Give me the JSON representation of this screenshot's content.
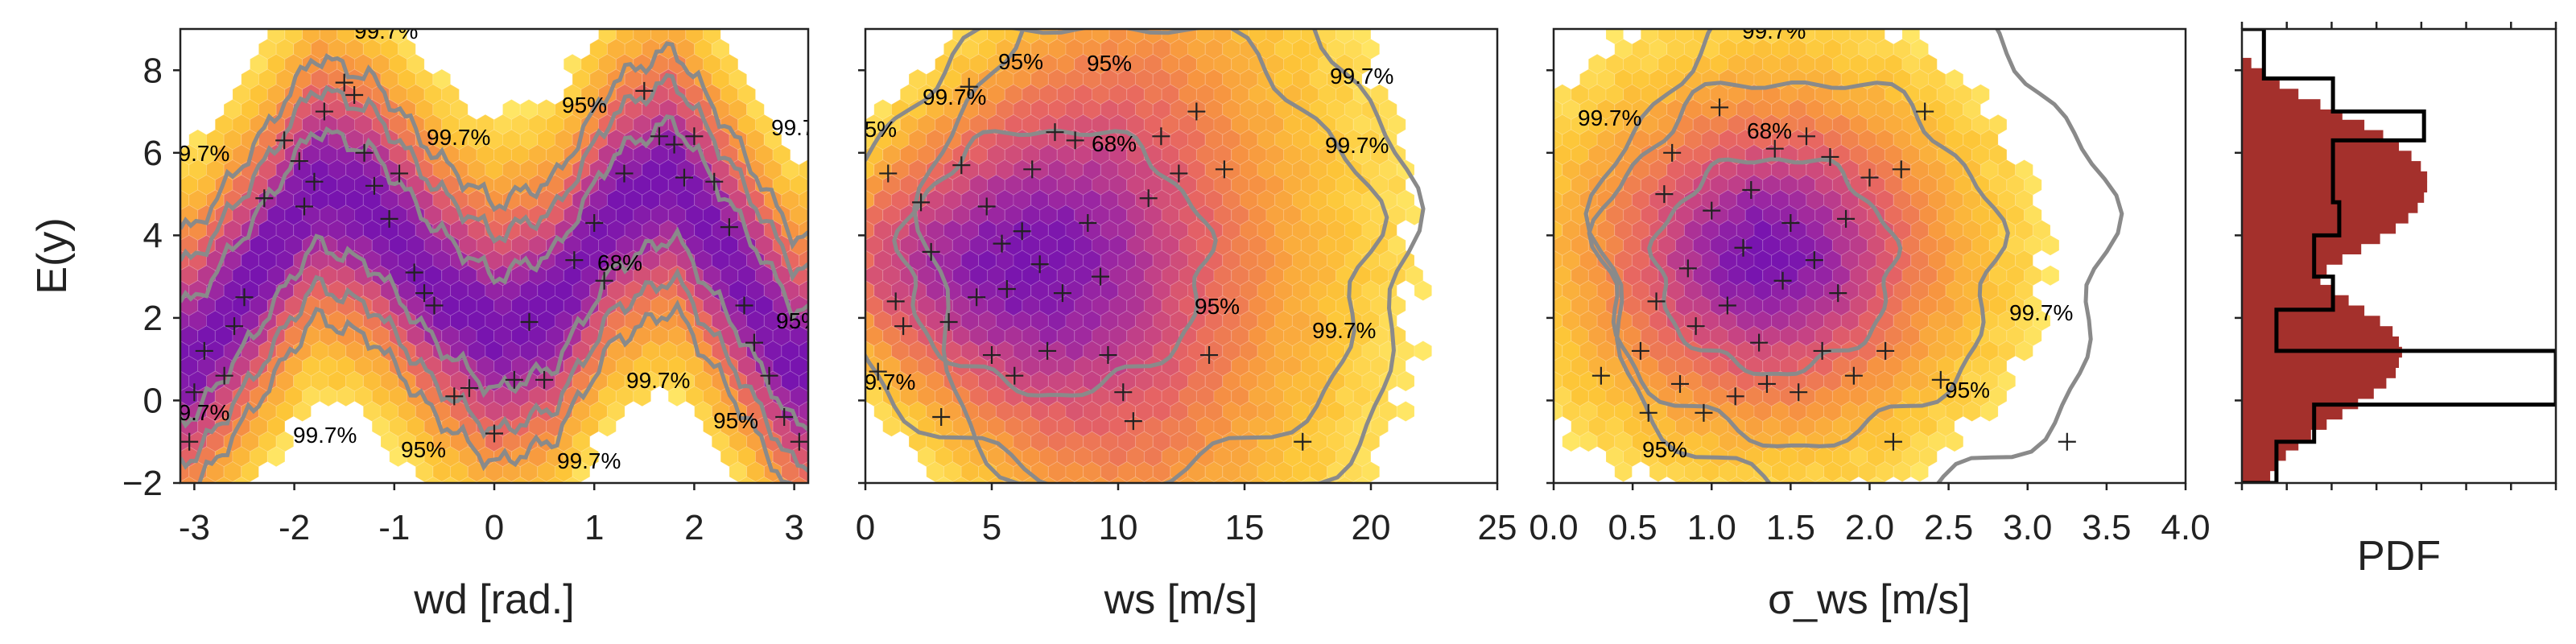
{
  "chart_data": [
    {
      "type": "hexbin_scatter",
      "xlabel": "wd [rad.]",
      "ylabel": "E(y)",
      "xlim": [
        -3.14,
        3.14
      ],
      "ylim": [
        -2,
        9
      ],
      "xticks": [
        "-3",
        "-2",
        "-1",
        "0",
        "1",
        "2",
        "3"
      ],
      "yticks": [
        "−2",
        "0",
        "2",
        "4",
        "6",
        "8"
      ],
      "contour_labels": [
        "68%",
        "95%",
        "99.7%"
      ],
      "density_trend": {
        "x": [
          -3.0,
          -2.4,
          -1.8,
          -1.2,
          -0.6,
          0.0,
          0.6,
          1.2,
          1.8,
          2.4,
          3.0
        ],
        "y": [
          1.0,
          3.0,
          5.2,
          4.6,
          2.8,
          1.6,
          2.2,
          4.6,
          5.4,
          3.2,
          0.8
        ]
      },
      "points": [
        [
          -3.05,
          -1.0
        ],
        [
          -3.0,
          0.2
        ],
        [
          -2.9,
          1.2
        ],
        [
          -2.7,
          0.6
        ],
        [
          -2.6,
          1.8
        ],
        [
          -2.5,
          2.5
        ],
        [
          -2.3,
          4.9
        ],
        [
          -2.1,
          6.3
        ],
        [
          -1.95,
          5.8
        ],
        [
          -1.9,
          4.7
        ],
        [
          -1.8,
          5.3
        ],
        [
          -1.7,
          7.0
        ],
        [
          -1.5,
          7.7
        ],
        [
          -1.4,
          7.4
        ],
        [
          -1.3,
          6.0
        ],
        [
          -1.2,
          5.2
        ],
        [
          -1.05,
          4.4
        ],
        [
          -0.95,
          5.5
        ],
        [
          -0.8,
          3.1
        ],
        [
          -0.7,
          2.6
        ],
        [
          -0.6,
          2.3
        ],
        [
          -0.4,
          0.1
        ],
        [
          -0.25,
          0.3
        ],
        [
          0.0,
          -0.8
        ],
        [
          0.2,
          0.5
        ],
        [
          0.35,
          1.9
        ],
        [
          0.5,
          0.5
        ],
        [
          0.8,
          3.4
        ],
        [
          1.0,
          4.3
        ],
        [
          1.1,
          2.9
        ],
        [
          1.3,
          5.5
        ],
        [
          1.5,
          7.5
        ],
        [
          1.65,
          6.4
        ],
        [
          1.8,
          6.2
        ],
        [
          1.9,
          5.4
        ],
        [
          2.0,
          6.4
        ],
        [
          2.2,
          5.3
        ],
        [
          2.35,
          4.2
        ],
        [
          2.5,
          2.3
        ],
        [
          2.6,
          1.4
        ],
        [
          2.75,
          0.6
        ],
        [
          2.9,
          -0.4
        ],
        [
          3.05,
          -1.0
        ]
      ]
    },
    {
      "type": "hexbin_scatter",
      "xlabel": "ws [m/s]",
      "ylabel": "",
      "xlim": [
        0,
        25
      ],
      "ylim": [
        -2,
        9
      ],
      "xticks": [
        "0",
        "5",
        "10",
        "15",
        "20",
        "25"
      ],
      "contour_labels": [
        "68%",
        "95%",
        "99.7%"
      ],
      "points": [
        [
          0.5,
          0.7
        ],
        [
          0.9,
          5.5
        ],
        [
          1.2,
          2.4
        ],
        [
          1.5,
          1.8
        ],
        [
          2.2,
          4.8
        ],
        [
          2.6,
          3.6
        ],
        [
          3.0,
          -0.4
        ],
        [
          3.3,
          1.9
        ],
        [
          3.8,
          5.7
        ],
        [
          4.1,
          7.6
        ],
        [
          4.4,
          2.5
        ],
        [
          4.8,
          4.7
        ],
        [
          5.0,
          1.1
        ],
        [
          5.4,
          3.8
        ],
        [
          5.6,
          2.7
        ],
        [
          5.9,
          0.6
        ],
        [
          6.2,
          4.1
        ],
        [
          6.6,
          5.6
        ],
        [
          6.9,
          3.3
        ],
        [
          7.2,
          1.2
        ],
        [
          7.5,
          6.5
        ],
        [
          7.8,
          2.6
        ],
        [
          8.3,
          6.3
        ],
        [
          8.8,
          4.3
        ],
        [
          9.3,
          3.0
        ],
        [
          9.6,
          1.1
        ],
        [
          10.2,
          0.2
        ],
        [
          10.6,
          -0.5
        ],
        [
          11.2,
          4.9
        ],
        [
          11.7,
          6.4
        ],
        [
          12.4,
          5.5
        ],
        [
          13.1,
          7.0
        ],
        [
          13.6,
          1.1
        ],
        [
          14.2,
          5.6
        ],
        [
          17.3,
          -1.0
        ]
      ]
    },
    {
      "type": "hexbin_scatter",
      "xlabel": "σ_ws [m/s]",
      "ylabel": "",
      "xlim": [
        0.0,
        4.0
      ],
      "ylim": [
        -2,
        9
      ],
      "xticks": [
        "0.0",
        "0.5",
        "1.0",
        "1.5",
        "2.0",
        "2.5",
        "3.0",
        "3.5",
        "4.0"
      ],
      "contour_labels": [
        "68%",
        "95%",
        "99.7%"
      ],
      "points": [
        [
          0.3,
          0.6
        ],
        [
          0.55,
          1.2
        ],
        [
          0.6,
          -0.3
        ],
        [
          0.65,
          2.4
        ],
        [
          0.7,
          5.0
        ],
        [
          0.75,
          6.0
        ],
        [
          0.8,
          0.4
        ],
        [
          0.85,
          3.2
        ],
        [
          0.9,
          1.8
        ],
        [
          0.95,
          -0.3
        ],
        [
          1.0,
          4.6
        ],
        [
          1.05,
          7.1
        ],
        [
          1.1,
          2.3
        ],
        [
          1.15,
          0.1
        ],
        [
          1.2,
          3.7
        ],
        [
          1.25,
          5.1
        ],
        [
          1.3,
          1.4
        ],
        [
          1.35,
          0.4
        ],
        [
          1.4,
          6.1
        ],
        [
          1.45,
          2.9
        ],
        [
          1.5,
          4.3
        ],
        [
          1.55,
          0.2
        ],
        [
          1.6,
          6.4
        ],
        [
          1.65,
          3.4
        ],
        [
          1.7,
          1.2
        ],
        [
          1.75,
          5.9
        ],
        [
          1.8,
          2.6
        ],
        [
          1.85,
          4.4
        ],
        [
          1.9,
          0.6
        ],
        [
          2.0,
          5.4
        ],
        [
          2.1,
          1.2
        ],
        [
          2.15,
          -1.0
        ],
        [
          2.2,
          5.6
        ],
        [
          2.35,
          7.0
        ],
        [
          2.45,
          0.5
        ],
        [
          3.25,
          -1.0
        ]
      ]
    },
    {
      "type": "histogram",
      "xlabel": "PDF",
      "ylim": [
        -2,
        9
      ],
      "filled_bins": {
        "edges_start": -1.95,
        "bin_width": 0.25,
        "values": [
          0.09,
          0.11,
          0.14,
          0.18,
          0.22,
          0.27,
          0.32,
          0.37,
          0.42,
          0.46,
          0.49,
          0.5,
          0.51,
          0.5,
          0.48,
          0.44,
          0.39,
          0.34,
          0.29,
          0.25,
          0.27,
          0.32,
          0.38,
          0.44,
          0.49,
          0.53,
          0.56,
          0.58,
          0.59,
          0.59,
          0.57,
          0.54,
          0.5,
          0.45,
          0.39,
          0.32,
          0.25,
          0.18,
          0.12,
          0.07,
          0.03
        ]
      },
      "step_outline": {
        "edges": [
          -2.0,
          -1.0,
          -0.1,
          1.2,
          2.2,
          3.0,
          4.0,
          4.8,
          6.3,
          7.0,
          7.8,
          9.0
        ],
        "values": [
          0.11,
          0.23,
          1.0,
          0.11,
          0.29,
          0.23,
          0.31,
          0.29,
          0.58,
          0.29,
          0.07
        ]
      }
    }
  ]
}
